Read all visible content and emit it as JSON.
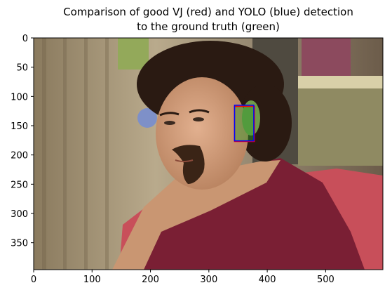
{
  "chart_data": {
    "type": "image",
    "title_lines": [
      "Comparison of good VJ (red) and YOLO (blue) detection",
      "to the ground truth (green)"
    ],
    "xlabel": "",
    "ylabel": "",
    "xlim": [
      0,
      598
    ],
    "ylim": [
      396,
      0
    ],
    "y_inverted": true,
    "xticks": [
      0,
      100,
      200,
      300,
      400,
      500
    ],
    "yticks": [
      0,
      50,
      100,
      150,
      200,
      250,
      300,
      350
    ],
    "grid": false,
    "boxes": [
      {
        "name": "ground truth",
        "color": "#2e9e2e",
        "x0": 344,
        "y0": 117,
        "x1": 377,
        "y1": 176,
        "filled": true
      },
      {
        "name": "VJ",
        "color": "#ff0000",
        "x0": 344,
        "y0": 117,
        "x1": 378,
        "y1": 177,
        "filled": false
      },
      {
        "name": "YOLO",
        "color": "#0000ff",
        "x0": 344,
        "y0": 115,
        "x1": 377,
        "y1": 176,
        "filled": false
      }
    ]
  },
  "colors": {
    "skin": "#d7a07e",
    "hair": "#2a1a12",
    "shirt": "#7a1f34",
    "wall": "#c3b49a",
    "background_dark": "#5c4a3a"
  }
}
